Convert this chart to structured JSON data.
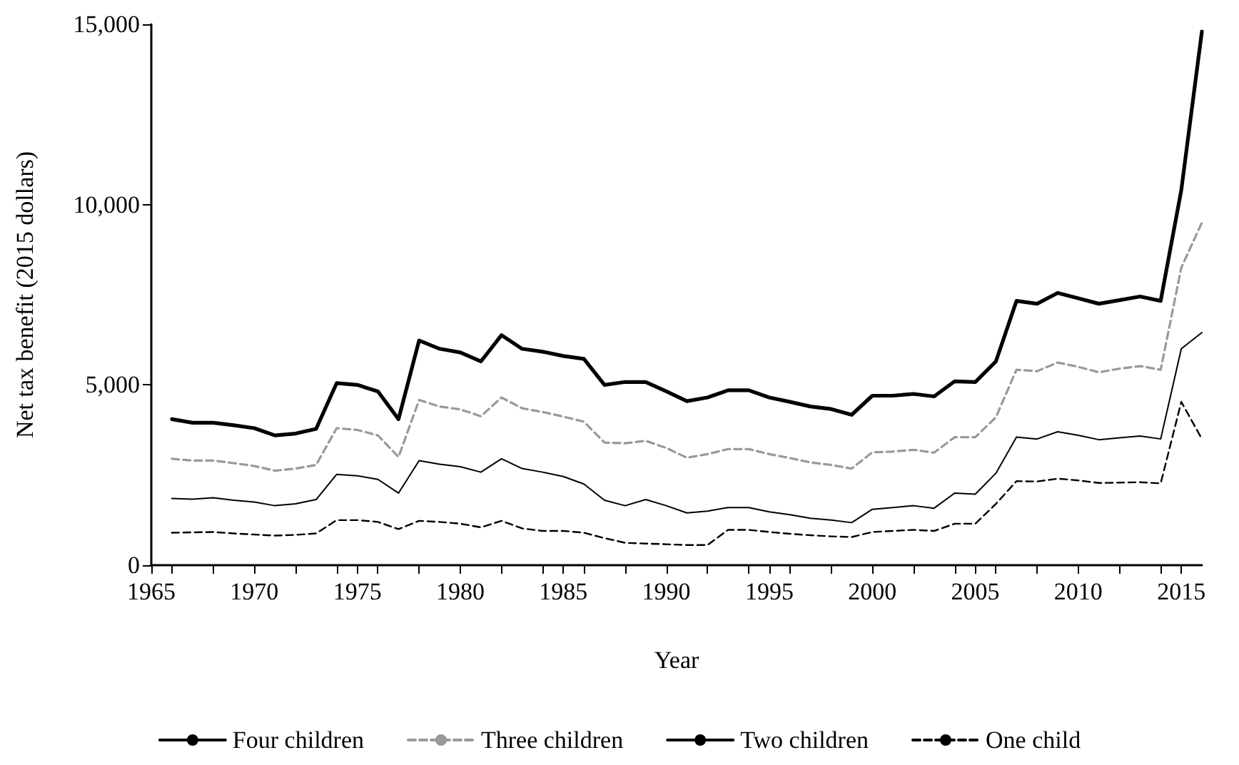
{
  "chart_data": {
    "type": "line",
    "xlabel": "Year",
    "ylabel": "Net tax benefit (2015 dollars)",
    "x": [
      1966,
      1967,
      1968,
      1969,
      1970,
      1971,
      1972,
      1973,
      1974,
      1975,
      1976,
      1977,
      1978,
      1979,
      1980,
      1981,
      1982,
      1983,
      1984,
      1985,
      1986,
      1987,
      1988,
      1989,
      1990,
      1991,
      1992,
      1993,
      1994,
      1995,
      1996,
      1997,
      1998,
      1999,
      2000,
      2001,
      2002,
      2003,
      2004,
      2005,
      2006,
      2007,
      2008,
      2009,
      2010,
      2011,
      2012,
      2013,
      2014,
      2015,
      2016
    ],
    "series": [
      {
        "name": "Four children",
        "color": "#000000",
        "line_style": "solid",
        "values": [
          4050,
          3950,
          3950,
          3880,
          3800,
          3600,
          3650,
          3780,
          5050,
          5000,
          4820,
          4050,
          6230,
          6000,
          5900,
          5650,
          6380,
          6000,
          5920,
          5800,
          5720,
          5000,
          5080,
          5080,
          4820,
          4550,
          4650,
          4850,
          4850,
          4650,
          4530,
          4400,
          4330,
          4170,
          4700,
          4700,
          4750,
          4680,
          5100,
          5080,
          5650,
          7330,
          7250,
          7550,
          7400,
          7250,
          7350,
          7450,
          7330,
          10400,
          14800
        ]
      },
      {
        "name": "Three children",
        "color": "#999999",
        "line_style": "dashed",
        "values": [
          2950,
          2900,
          2900,
          2830,
          2750,
          2620,
          2680,
          2780,
          3800,
          3750,
          3600,
          3000,
          4580,
          4400,
          4320,
          4130,
          4650,
          4350,
          4250,
          4120,
          3980,
          3400,
          3380,
          3450,
          3250,
          2980,
          3080,
          3220,
          3220,
          3080,
          2970,
          2850,
          2780,
          2680,
          3130,
          3150,
          3200,
          3120,
          3550,
          3550,
          4100,
          5420,
          5380,
          5620,
          5500,
          5350,
          5450,
          5520,
          5420,
          8250,
          9500
        ]
      },
      {
        "name": "Two children",
        "color": "#000000",
        "line_style": "solid",
        "values": [
          1850,
          1830,
          1870,
          1800,
          1750,
          1650,
          1700,
          1820,
          2520,
          2480,
          2380,
          2000,
          2900,
          2800,
          2730,
          2580,
          2950,
          2680,
          2580,
          2460,
          2250,
          1800,
          1650,
          1820,
          1650,
          1450,
          1500,
          1600,
          1600,
          1480,
          1400,
          1300,
          1250,
          1180,
          1550,
          1600,
          1650,
          1580,
          2000,
          1970,
          2550,
          3550,
          3500,
          3700,
          3600,
          3480,
          3530,
          3580,
          3500,
          6000,
          6450
        ]
      },
      {
        "name": "One child",
        "color": "#000000",
        "line_style": "dashed",
        "values": [
          900,
          910,
          920,
          880,
          850,
          820,
          840,
          880,
          1250,
          1250,
          1200,
          1000,
          1230,
          1200,
          1150,
          1050,
          1230,
          1020,
          950,
          950,
          900,
          750,
          620,
          600,
          580,
          560,
          560,
          980,
          980,
          920,
          870,
          830,
          800,
          780,
          920,
          950,
          980,
          950,
          1150,
          1150,
          1700,
          2330,
          2320,
          2400,
          2350,
          2280,
          2290,
          2300,
          2270,
          4530,
          3500
        ]
      }
    ],
    "xlim": [
      1965,
      2016
    ],
    "xticks": [
      1965,
      1970,
      1975,
      1980,
      1985,
      1990,
      1995,
      2000,
      2005,
      2010,
      2015
    ],
    "ylim": [
      0,
      15000
    ],
    "yticks": [
      0,
      {
        "value": 5000,
        "label": "5,000"
      },
      {
        "value": 10000,
        "label": "10,000"
      },
      {
        "value": 15000,
        "label": "15,000"
      }
    ],
    "grid": false,
    "legend": "bottom",
    "marker": "none"
  }
}
